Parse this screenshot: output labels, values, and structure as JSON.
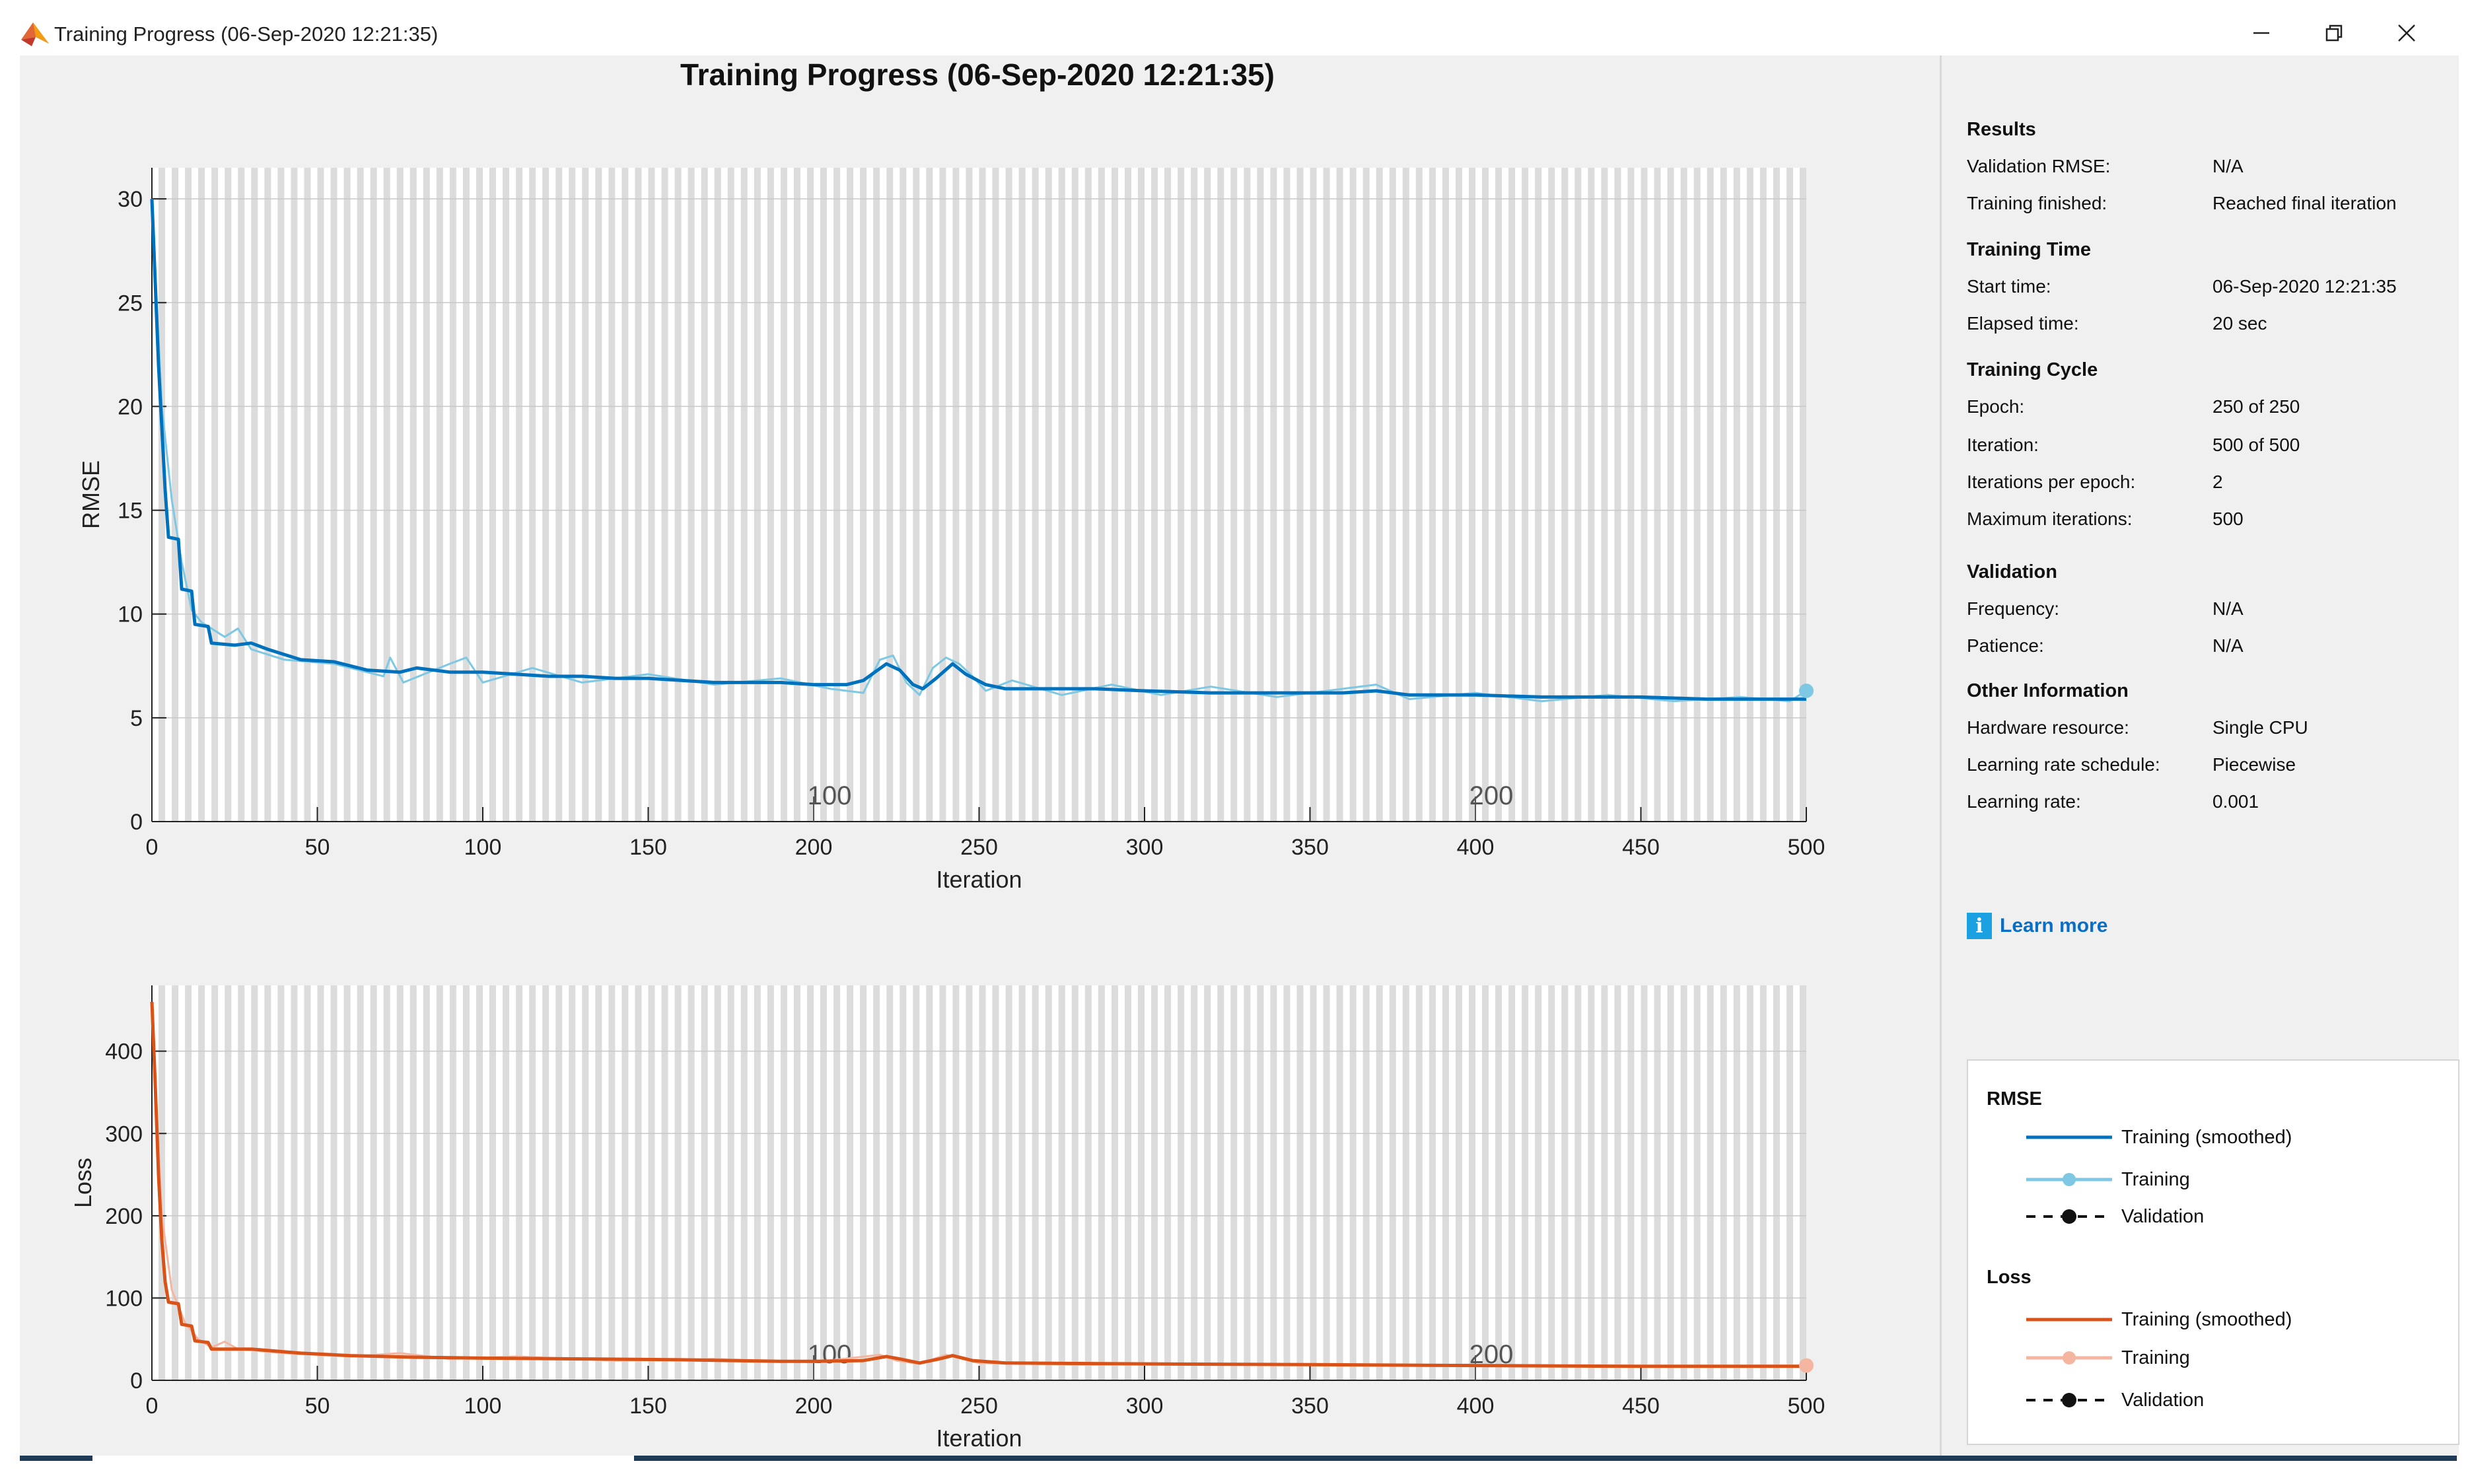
{
  "window": {
    "title": "Training Progress (06-Sep-2020 12:21:35)",
    "controls": {
      "minimize": "minimize-icon",
      "restore": "restore-icon",
      "close": "close-icon"
    }
  },
  "figure_title": "Training Progress (06-Sep-2020 12:21:35)",
  "chart_data": [
    {
      "type": "line",
      "title": "Training Progress (06-Sep-2020 12:21:35)",
      "xlabel": "Iteration",
      "ylabel": "RMSE",
      "xlim": [
        0,
        500
      ],
      "ylim": [
        0,
        31.5
      ],
      "xticks": [
        0,
        50,
        100,
        150,
        200,
        250,
        300,
        350,
        400,
        450,
        500
      ],
      "yticks": [
        0,
        5,
        10,
        15,
        20,
        25,
        30
      ],
      "epoch_markers": [
        {
          "iteration": 200,
          "label": "100"
        },
        {
          "iteration": 400,
          "label": "200"
        }
      ],
      "grid": "epoch shading",
      "series": [
        {
          "name": "Training (smoothed)",
          "color": "#0072bd",
          "points": [
            [
              0,
              30
            ],
            [
              2,
              22
            ],
            [
              4,
              16
            ],
            [
              5,
              13.7
            ],
            [
              8,
              13.6
            ],
            [
              9,
              11.2
            ],
            [
              12,
              11.1
            ],
            [
              13,
              9.5
            ],
            [
              17,
              9.4
            ],
            [
              18,
              8.6
            ],
            [
              25,
              8.5
            ],
            [
              30,
              8.6
            ],
            [
              35,
              8.3
            ],
            [
              45,
              7.8
            ],
            [
              55,
              7.7
            ],
            [
              65,
              7.3
            ],
            [
              75,
              7.2
            ],
            [
              80,
              7.4
            ],
            [
              90,
              7.2
            ],
            [
              100,
              7.2
            ],
            [
              110,
              7.1
            ],
            [
              120,
              7.0
            ],
            [
              130,
              7.0
            ],
            [
              140,
              6.9
            ],
            [
              150,
              6.9
            ],
            [
              160,
              6.8
            ],
            [
              170,
              6.7
            ],
            [
              180,
              6.7
            ],
            [
              190,
              6.7
            ],
            [
              200,
              6.6
            ],
            [
              210,
              6.6
            ],
            [
              215,
              6.8
            ],
            [
              222,
              7.6
            ],
            [
              226,
              7.3
            ],
            [
              230,
              6.6
            ],
            [
              233,
              6.4
            ],
            [
              237,
              6.9
            ],
            [
              242,
              7.6
            ],
            [
              246,
              7.1
            ],
            [
              252,
              6.6
            ],
            [
              258,
              6.4
            ],
            [
              265,
              6.4
            ],
            [
              275,
              6.4
            ],
            [
              285,
              6.4
            ],
            [
              300,
              6.3
            ],
            [
              320,
              6.2
            ],
            [
              340,
              6.2
            ],
            [
              360,
              6.2
            ],
            [
              370,
              6.3
            ],
            [
              380,
              6.1
            ],
            [
              400,
              6.1
            ],
            [
              420,
              6.0
            ],
            [
              450,
              6.0
            ],
            [
              470,
              5.9
            ],
            [
              490,
              5.9
            ],
            [
              500,
              5.9
            ]
          ]
        },
        {
          "name": "Training",
          "color": "#7ec8e3",
          "points": [
            [
              0,
              30
            ],
            [
              3,
              20
            ],
            [
              6,
              15.5
            ],
            [
              9,
              12.5
            ],
            [
              12,
              10.2
            ],
            [
              15,
              9.6
            ],
            [
              18,
              9.3
            ],
            [
              22,
              8.9
            ],
            [
              26,
              9.3
            ],
            [
              30,
              8.3
            ],
            [
              40,
              7.8
            ],
            [
              55,
              7.6
            ],
            [
              70,
              7.0
            ],
            [
              72,
              7.9
            ],
            [
              76,
              6.7
            ],
            [
              90,
              7.6
            ],
            [
              95,
              7.9
            ],
            [
              100,
              6.7
            ],
            [
              115,
              7.4
            ],
            [
              130,
              6.7
            ],
            [
              150,
              7.1
            ],
            [
              170,
              6.6
            ],
            [
              190,
              6.9
            ],
            [
              205,
              6.4
            ],
            [
              215,
              6.2
            ],
            [
              220,
              7.8
            ],
            [
              224,
              8.0
            ],
            [
              228,
              6.7
            ],
            [
              232,
              6.1
            ],
            [
              236,
              7.4
            ],
            [
              240,
              7.9
            ],
            [
              244,
              7.6
            ],
            [
              248,
              7.0
            ],
            [
              252,
              6.3
            ],
            [
              260,
              6.8
            ],
            [
              275,
              6.1
            ],
            [
              290,
              6.6
            ],
            [
              305,
              6.1
            ],
            [
              320,
              6.5
            ],
            [
              340,
              6.0
            ],
            [
              360,
              6.4
            ],
            [
              370,
              6.6
            ],
            [
              380,
              5.9
            ],
            [
              400,
              6.2
            ],
            [
              420,
              5.8
            ],
            [
              440,
              6.1
            ],
            [
              460,
              5.8
            ],
            [
              480,
              6.0
            ],
            [
              495,
              5.8
            ],
            [
              500,
              6.3
            ]
          ]
        }
      ],
      "validation": "N/A"
    },
    {
      "type": "line",
      "xlabel": "Iteration",
      "ylabel": "Loss",
      "xlim": [
        0,
        500
      ],
      "ylim": [
        0,
        480
      ],
      "xticks": [
        0,
        50,
        100,
        150,
        200,
        250,
        300,
        350,
        400,
        450,
        500
      ],
      "yticks": [
        0,
        100,
        200,
        300,
        400
      ],
      "epoch_markers": [
        {
          "iteration": 200,
          "label": "100"
        },
        {
          "iteration": 400,
          "label": "200"
        }
      ],
      "grid": "epoch shading",
      "series": [
        {
          "name": "Training (smoothed)",
          "color": "#d95319",
          "points": [
            [
              0,
              460
            ],
            [
              1,
              360
            ],
            [
              2,
              250
            ],
            [
              3,
              170
            ],
            [
              4,
              120
            ],
            [
              5,
              95
            ],
            [
              8,
              93
            ],
            [
              9,
              68
            ],
            [
              12,
              66
            ],
            [
              13,
              48
            ],
            [
              17,
              46
            ],
            [
              18,
              38
            ],
            [
              30,
              38
            ],
            [
              45,
              33
            ],
            [
              60,
              30
            ],
            [
              80,
              28
            ],
            [
              100,
              27
            ],
            [
              130,
              26
            ],
            [
              160,
              25
            ],
            [
              190,
              23
            ],
            [
              200,
              23
            ],
            [
              215,
              24
            ],
            [
              222,
              29
            ],
            [
              226,
              26
            ],
            [
              232,
              21
            ],
            [
              238,
              26
            ],
            [
              242,
              30
            ],
            [
              248,
              24
            ],
            [
              258,
              21
            ],
            [
              300,
              20
            ],
            [
              350,
              19
            ],
            [
              400,
              18
            ],
            [
              450,
              17
            ],
            [
              500,
              17
            ]
          ]
        },
        {
          "name": "Training",
          "color": "#f4b6a0",
          "points": [
            [
              0,
              460
            ],
            [
              3,
              200
            ],
            [
              6,
              110
            ],
            [
              10,
              70
            ],
            [
              14,
              50
            ],
            [
              18,
              40
            ],
            [
              22,
              47
            ],
            [
              26,
              38
            ],
            [
              40,
              33
            ],
            [
              60,
              29
            ],
            [
              75,
              33
            ],
            [
              90,
              26
            ],
            [
              110,
              29
            ],
            [
              140,
              24
            ],
            [
              170,
              26
            ],
            [
              200,
              22
            ],
            [
              220,
              31
            ],
            [
              225,
              24
            ],
            [
              232,
              20
            ],
            [
              240,
              31
            ],
            [
              250,
              21
            ],
            [
              280,
              19
            ],
            [
              320,
              20
            ],
            [
              360,
              18
            ],
            [
              400,
              19
            ],
            [
              450,
              17
            ],
            [
              500,
              18
            ]
          ]
        }
      ],
      "validation": "N/A"
    }
  ],
  "results_panel": {
    "sections": [
      {
        "title": "Results",
        "rows": [
          {
            "label": "Validation RMSE:",
            "value": "N/A"
          },
          {
            "label": "Training finished:",
            "value": "Reached final iteration"
          }
        ]
      },
      {
        "title": "Training Time",
        "rows": [
          {
            "label": "Start time:",
            "value": "06-Sep-2020 12:21:35"
          },
          {
            "label": "Elapsed time:",
            "value": "20 sec"
          }
        ]
      },
      {
        "title": "Training Cycle",
        "rows": [
          {
            "label": "Epoch:",
            "value": "250 of 250"
          },
          {
            "label": "Iteration:",
            "value": "500 of 500"
          },
          {
            "label": "Iterations per epoch:",
            "value": "2"
          },
          {
            "label": "Maximum iterations:",
            "value": "500"
          }
        ]
      },
      {
        "title": "Validation",
        "rows": [
          {
            "label": "Frequency:",
            "value": "N/A"
          },
          {
            "label": "Patience:",
            "value": "N/A"
          }
        ]
      },
      {
        "title": "Other Information",
        "rows": [
          {
            "label": "Hardware resource:",
            "value": "Single CPU"
          },
          {
            "label": "Learning rate schedule:",
            "value": "Piecewise"
          },
          {
            "label": "Learning rate:",
            "value": "0.001"
          }
        ]
      }
    ],
    "learn_more": "Learn more",
    "info_icon": "info-icon"
  },
  "legend": {
    "rmse": {
      "title": "RMSE",
      "items": [
        "Training (smoothed)",
        "Training",
        "Validation"
      ]
    },
    "loss": {
      "title": "Loss",
      "items": [
        "Training (smoothed)",
        "Training",
        "Validation"
      ]
    },
    "colors": {
      "rmse_smoothed": "#0072bd",
      "rmse_training": "#7ec8e3",
      "loss_smoothed": "#d95319",
      "loss_training": "#f4b6a0",
      "validation": "#000000"
    }
  }
}
